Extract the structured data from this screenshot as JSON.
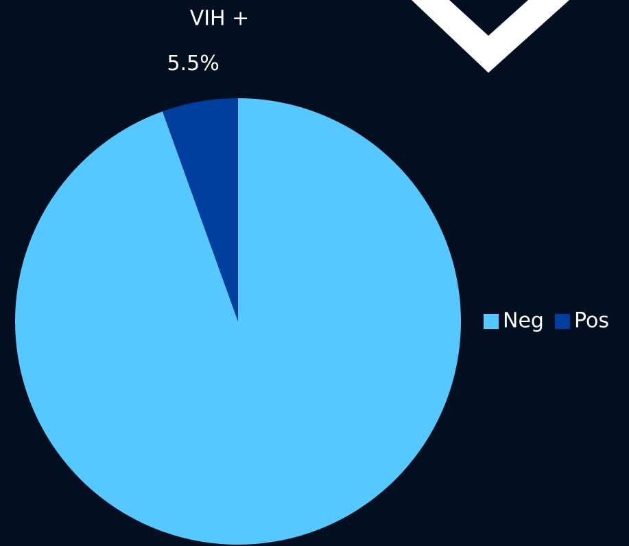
{
  "chart_data": {
    "type": "pie",
    "title": "VIH +",
    "categories": [
      "Neg",
      "Pos"
    ],
    "values": [
      94.5,
      5.5
    ],
    "value_labels": [
      null,
      "5.5%"
    ],
    "colors": [
      "#56c8ff",
      "#003f9e"
    ],
    "legend": "right"
  }
}
